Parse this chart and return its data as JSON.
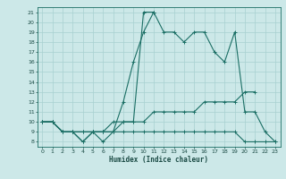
{
  "xlabel": "Humidex (Indice chaleur)",
  "xlim": [
    -0.5,
    23.5
  ],
  "ylim": [
    7.5,
    21.5
  ],
  "xticks": [
    0,
    1,
    2,
    3,
    4,
    5,
    6,
    7,
    8,
    9,
    10,
    11,
    12,
    13,
    14,
    15,
    16,
    17,
    18,
    19,
    20,
    21,
    22,
    23
  ],
  "yticks": [
    8,
    9,
    10,
    11,
    12,
    13,
    14,
    15,
    16,
    17,
    18,
    19,
    20,
    21
  ],
  "bg_color": "#cce8e8",
  "line_color": "#1a6e64",
  "grid_color": "#a8d0d0",
  "lines": [
    {
      "x": [
        0,
        1,
        2,
        3,
        4,
        5,
        6,
        7,
        8,
        9,
        10,
        11,
        12,
        13,
        14,
        15,
        16,
        17,
        18,
        19,
        20,
        21,
        22,
        23
      ],
      "y": [
        10,
        10,
        9,
        9,
        8,
        9,
        9,
        9,
        10,
        10,
        21,
        21,
        19,
        19,
        18,
        19,
        19,
        17,
        16,
        19,
        11,
        11,
        9,
        8
      ]
    },
    {
      "x": [
        0,
        1,
        2,
        3,
        4,
        5,
        6,
        7,
        8,
        9,
        10,
        11
      ],
      "y": [
        10,
        10,
        9,
        9,
        8,
        9,
        8,
        9,
        12,
        16,
        19,
        21
      ]
    },
    {
      "x": [
        0,
        1,
        2,
        3,
        4,
        5,
        6,
        7,
        8,
        9,
        10,
        11,
        12,
        13,
        14,
        15,
        16,
        17,
        18,
        19,
        20,
        21
      ],
      "y": [
        10,
        10,
        9,
        9,
        9,
        9,
        9,
        10,
        10,
        10,
        10,
        11,
        11,
        11,
        11,
        11,
        12,
        12,
        12,
        12,
        13,
        13
      ]
    },
    {
      "x": [
        0,
        1,
        2,
        3,
        4,
        5,
        6,
        7,
        8,
        9,
        10,
        11,
        12,
        13,
        14,
        15,
        16,
        17,
        18,
        19,
        20,
        21,
        22,
        23
      ],
      "y": [
        10,
        10,
        9,
        9,
        9,
        9,
        9,
        9,
        9,
        9,
        9,
        9,
        9,
        9,
        9,
        9,
        9,
        9,
        9,
        9,
        8,
        8,
        8,
        8
      ]
    }
  ]
}
